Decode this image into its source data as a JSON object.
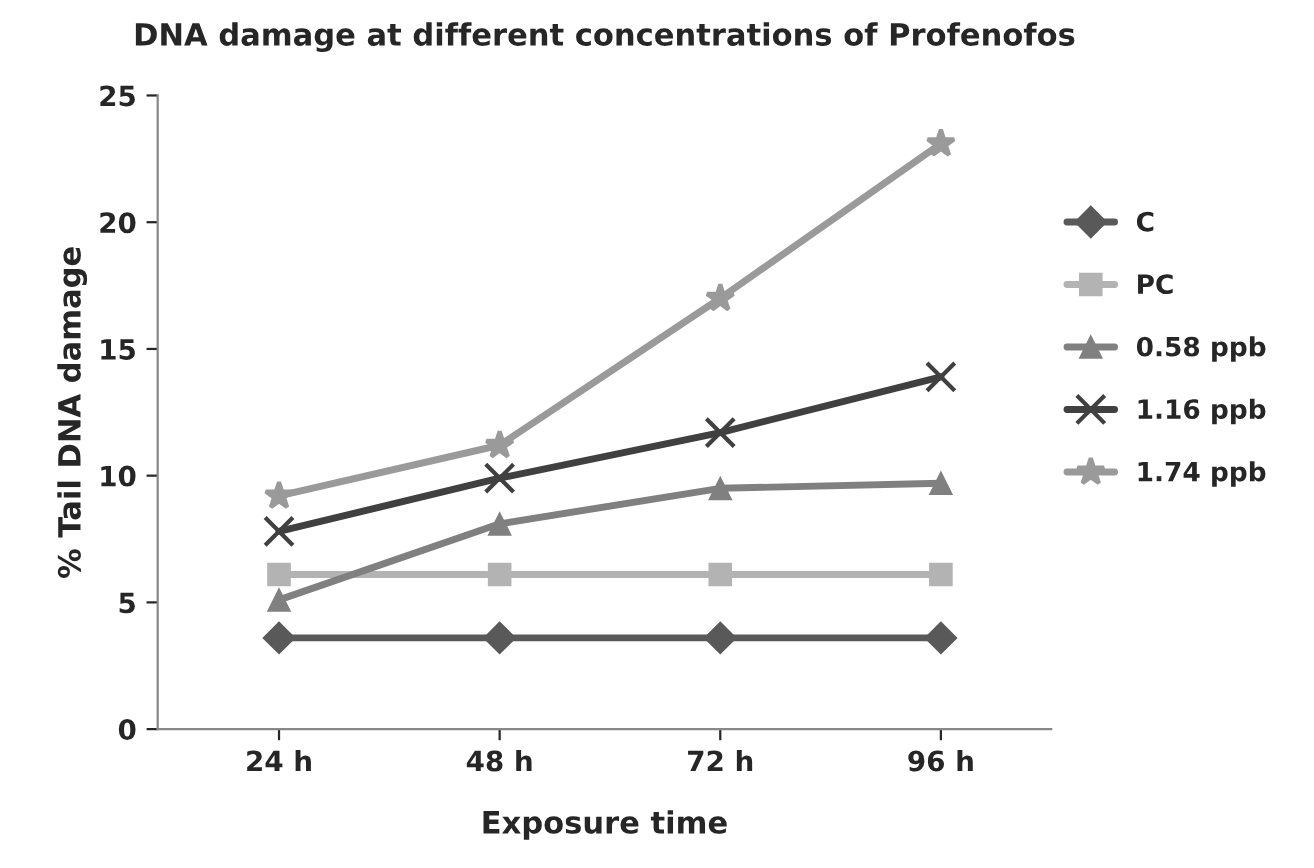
{
  "chart_data": {
    "type": "line",
    "title": "DNA damage at different concentrations of Profenofos",
    "xlabel": "Exposure time",
    "ylabel": "% Tail DNA damage",
    "categories": [
      "24 h",
      "48 h",
      "72 h",
      "96 h"
    ],
    "series": [
      {
        "name": "C",
        "color": "#595959",
        "marker": "diamond",
        "values": [
          3.6,
          3.6,
          3.6,
          3.6
        ]
      },
      {
        "name": "PC",
        "color": "#b3b3b3",
        "marker": "square",
        "values": [
          6.1,
          6.1,
          6.1,
          6.1
        ]
      },
      {
        "name": "0.58 ppb",
        "color": "#808080",
        "marker": "triangle",
        "values": [
          5.1,
          8.1,
          9.5,
          9.7
        ]
      },
      {
        "name": "1.16 ppb",
        "color": "#404040",
        "marker": "cross",
        "values": [
          7.8,
          9.9,
          11.7,
          13.9
        ]
      },
      {
        "name": "1.74 ppb",
        "color": "#9a9a9a",
        "marker": "star",
        "values": [
          9.2,
          11.2,
          17.0,
          23.1
        ]
      }
    ],
    "ylim": [
      0,
      25
    ],
    "yticks": [
      0,
      5,
      10,
      15,
      20,
      25
    ],
    "grid": false,
    "legend": "right",
    "line_style": "solid"
  }
}
